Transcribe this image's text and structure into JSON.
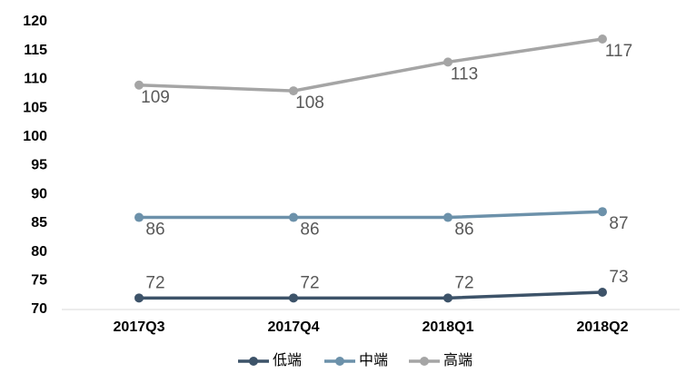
{
  "chart_data": {
    "type": "line",
    "categories": [
      "2017Q3",
      "2017Q4",
      "2018Q1",
      "2018Q2"
    ],
    "series": [
      {
        "name": "低端",
        "color": "#3d5369",
        "values": [
          72,
          72,
          72,
          73
        ]
      },
      {
        "name": "中端",
        "color": "#6c91aa",
        "values": [
          86,
          86,
          86,
          87
        ]
      },
      {
        "name": "高端",
        "color": "#a5a5a5",
        "values": [
          109,
          108,
          113,
          117
        ]
      }
    ],
    "ylim": [
      70,
      120
    ],
    "yticks": [
      70,
      75,
      80,
      85,
      90,
      95,
      100,
      105,
      110,
      115,
      120
    ],
    "grid": false,
    "legend": "bottom",
    "data_labels": true
  }
}
